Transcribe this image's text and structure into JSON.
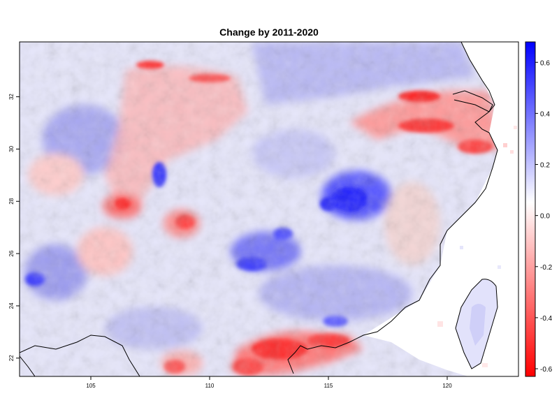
{
  "title": "Change by 2011-2020",
  "map": {
    "lon_range": [
      102,
      123
    ],
    "lat_range": [
      21.3,
      34.1
    ],
    "x_ticks": [
      {
        "value": 105,
        "label": "105"
      },
      {
        "value": 110,
        "label": "110"
      },
      {
        "value": 115,
        "label": "115"
      },
      {
        "value": 120,
        "label": "120"
      }
    ],
    "y_ticks": [
      {
        "value": 22,
        "label": "22"
      },
      {
        "value": 24,
        "label": "24"
      },
      {
        "value": 26,
        "label": "26"
      },
      {
        "value": 28,
        "label": "28"
      },
      {
        "value": 30,
        "label": "30"
      },
      {
        "value": 32,
        "label": "32"
      }
    ],
    "raster_description_colors": {
      "strong_positive": "#0000ff",
      "neutral": "#ffffff",
      "strong_negative": "#ff0000",
      "coastline": "#000000"
    },
    "features": [
      {
        "name": "central-blue-hotspot",
        "lon": 115.8,
        "lat": 28.2,
        "value": 0.6
      },
      {
        "name": "yangtze-delta-red-band",
        "lon": 120.0,
        "lat": 30.8,
        "value": -0.45
      },
      {
        "name": "pearl-river-red-band",
        "lon": 114.2,
        "lat": 22.7,
        "value": -0.45
      },
      {
        "name": "sichuan-red-ring",
        "lon": 108.0,
        "lat": 30.5,
        "value": -0.3
      }
    ]
  },
  "colorbar": {
    "range": [
      -0.63,
      0.68
    ],
    "ticks": [
      {
        "value": 0.6,
        "label": "0.6"
      },
      {
        "value": 0.4,
        "label": "0.4"
      },
      {
        "value": 0.2,
        "label": "0.2"
      },
      {
        "value": 0.0,
        "label": "0.0"
      },
      {
        "value": -0.2,
        "label": "-0.2"
      },
      {
        "value": -0.4,
        "label": "-0.4"
      },
      {
        "value": -0.6,
        "label": "-0.6"
      }
    ]
  }
}
